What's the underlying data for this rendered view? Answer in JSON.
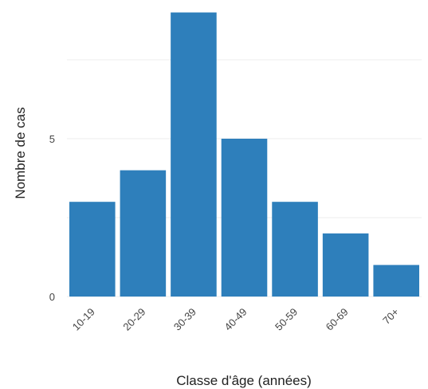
{
  "chart_data": {
    "type": "bar",
    "title": "",
    "xlabel": "Classe d'âge (années)",
    "ylabel": "Nombre de cas",
    "categories": [
      "10-19",
      "20-29",
      "30-39",
      "40-49",
      "50-59",
      "60-69",
      "70+"
    ],
    "values": [
      3,
      4,
      9,
      5,
      3,
      2,
      1
    ],
    "ylim": [
      0,
      9
    ],
    "yticks": [
      0,
      5
    ],
    "grid": true,
    "legend": "none",
    "bar_color": "#2e7fbb"
  }
}
